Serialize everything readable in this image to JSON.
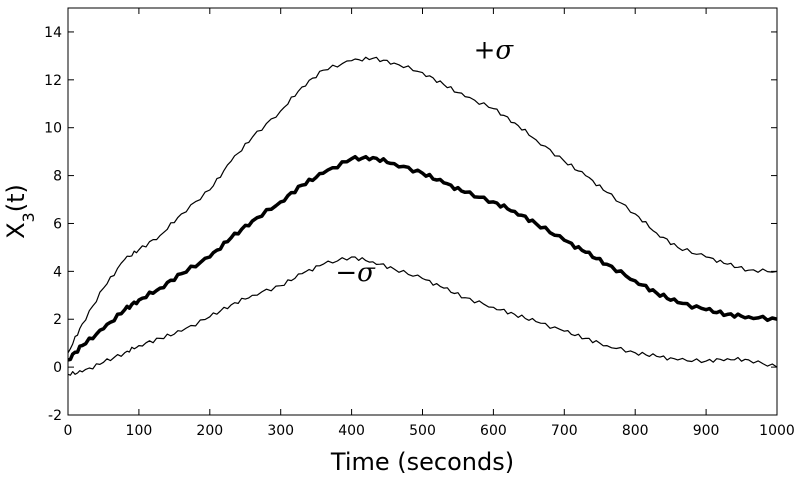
{
  "chart_data": {
    "type": "line",
    "title": "",
    "xlabel": "Time (seconds)",
    "ylabel_base": "X",
    "ylabel_sub": "3",
    "ylabel_suffix": "(t)",
    "xlim": [
      0,
      1000
    ],
    "ylim": [
      -2,
      15
    ],
    "xticks": [
      0,
      100,
      200,
      300,
      400,
      500,
      600,
      700,
      800,
      900,
      1000
    ],
    "yticks": [
      -2,
      0,
      2,
      4,
      6,
      8,
      10,
      12,
      14
    ],
    "grid": false,
    "legend": "none",
    "annotations": [
      {
        "text": "+σ",
        "x": 600,
        "y": 12.9
      },
      {
        "text": "−σ",
        "x": 405,
        "y": 3.6
      }
    ],
    "series": [
      {
        "role": "upper",
        "x": [
          0,
          20,
          50,
          80,
          100,
          130,
          160,
          200,
          230,
          260,
          300,
          330,
          360,
          400,
          430,
          460,
          500,
          530,
          560,
          600,
          630,
          660,
          700,
          730,
          760,
          800,
          830,
          860,
          900,
          930,
          960,
          1000
        ],
        "y": [
          0.6,
          1.8,
          3.3,
          4.5,
          4.9,
          5.5,
          6.4,
          7.4,
          8.6,
          9.6,
          10.7,
          11.7,
          12.4,
          12.8,
          12.9,
          12.7,
          12.3,
          11.8,
          11.3,
          10.8,
          10.2,
          9.5,
          8.6,
          8.0,
          7.3,
          6.4,
          5.6,
          5.0,
          4.6,
          4.3,
          4.05,
          4.0
        ]
      },
      {
        "role": "mean",
        "x": [
          0,
          20,
          50,
          80,
          100,
          130,
          160,
          200,
          230,
          260,
          300,
          330,
          360,
          400,
          430,
          460,
          500,
          530,
          560,
          600,
          630,
          660,
          700,
          730,
          760,
          800,
          830,
          860,
          900,
          930,
          960,
          1000
        ],
        "y": [
          0.3,
          0.9,
          1.6,
          2.4,
          2.8,
          3.3,
          3.9,
          4.6,
          5.4,
          6.1,
          6.9,
          7.6,
          8.1,
          8.7,
          8.75,
          8.5,
          8.1,
          7.7,
          7.3,
          6.9,
          6.5,
          6.0,
          5.3,
          4.8,
          4.3,
          3.6,
          3.1,
          2.7,
          2.4,
          2.2,
          2.1,
          2.0
        ]
      },
      {
        "role": "lower",
        "x": [
          0,
          20,
          50,
          80,
          100,
          130,
          160,
          200,
          230,
          260,
          300,
          330,
          360,
          400,
          430,
          460,
          500,
          530,
          560,
          600,
          630,
          660,
          700,
          730,
          760,
          800,
          830,
          860,
          900,
          930,
          960,
          1000
        ],
        "y": [
          -0.3,
          -0.2,
          0.2,
          0.6,
          0.9,
          1.2,
          1.5,
          2.1,
          2.6,
          3.0,
          3.4,
          3.9,
          4.3,
          4.6,
          4.4,
          4.1,
          3.7,
          3.3,
          2.9,
          2.5,
          2.2,
          1.9,
          1.5,
          1.2,
          0.9,
          0.6,
          0.45,
          0.3,
          0.25,
          0.35,
          0.3,
          0.0
        ]
      }
    ]
  }
}
